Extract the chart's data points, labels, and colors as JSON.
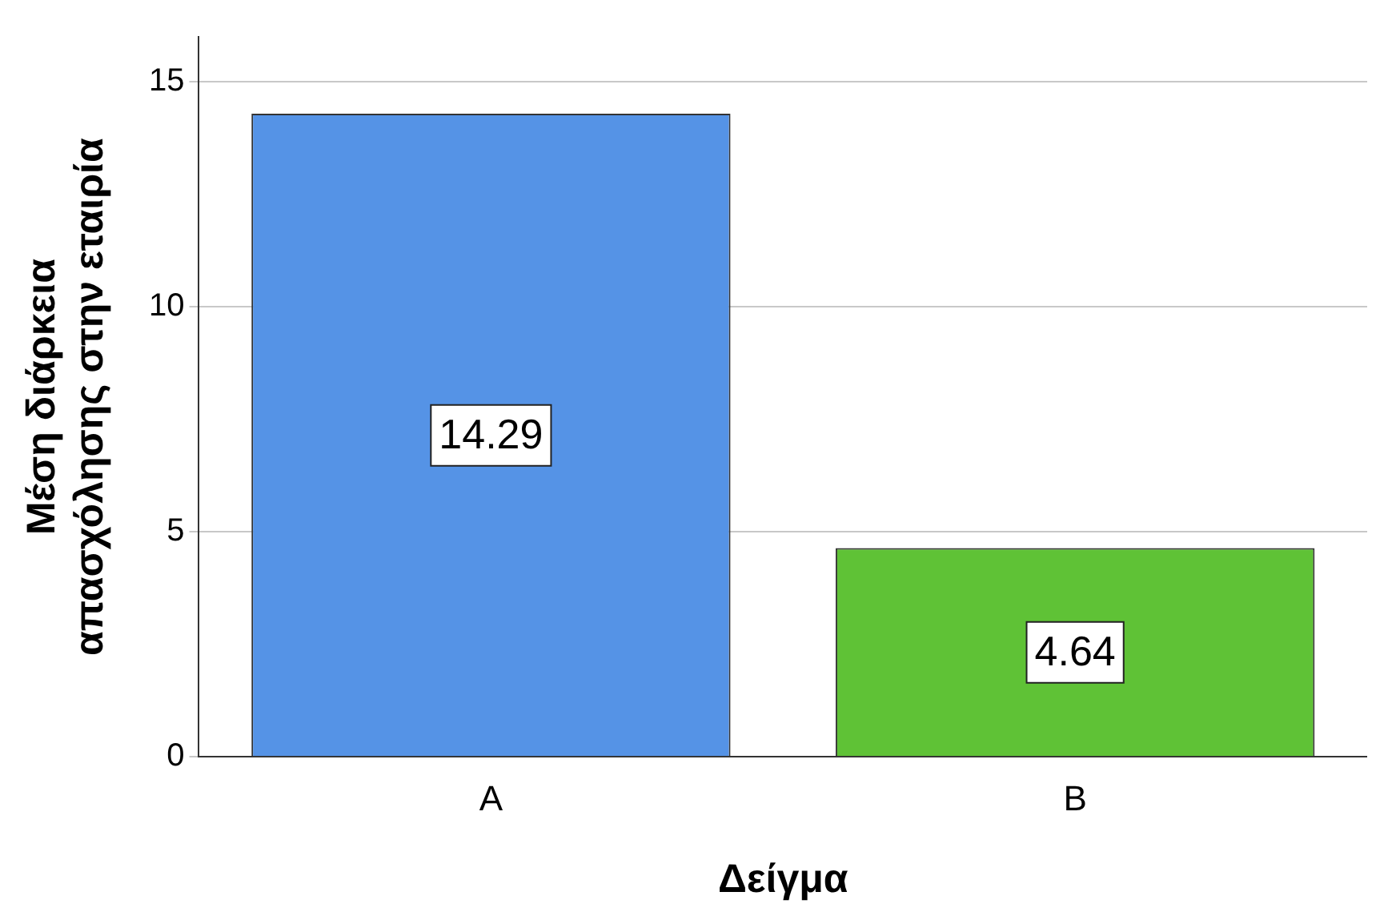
{
  "chart_data": {
    "type": "bar",
    "xlabel": "Δείγμα",
    "ylabel": "Μέση διάρκεια απασχόλησης στην εταιρία",
    "categories": [
      "A",
      "B"
    ],
    "values": [
      14.29,
      4.64
    ],
    "colors": [
      "#5593e6",
      "#5fc236"
    ],
    "ylim": [
      0,
      16
    ],
    "yticks": [
      0,
      5,
      10,
      15
    ],
    "grid": "y",
    "data_labels": true,
    "legend": false
  }
}
